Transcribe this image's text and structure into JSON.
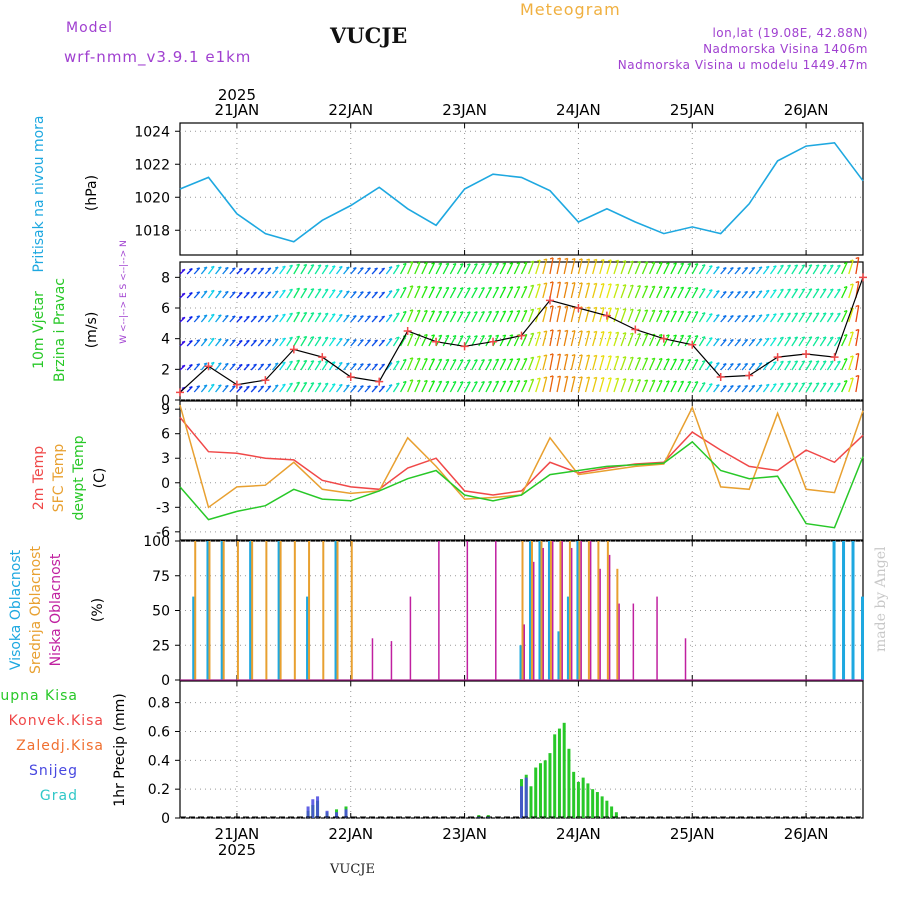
{
  "header": {
    "model_label": "Model",
    "model_name": "wrf-nmm_v3.9.1 e1km",
    "station": "VUCJE",
    "app_title": "Meteogram",
    "coords": "lon,lat (19.08E, 42.88N)",
    "altitude": "Nadmorska Visina 1406m",
    "model_altitude": "Nadmorska Visina u modelu 1449.47m",
    "footer_station": "VUCJE",
    "watermark": "made by Angel"
  },
  "colors": {
    "pressure": "#1ea8e0",
    "temp2m": "#f04848",
    "sfc": "#e8a030",
    "dewpt": "#28c828",
    "cloud_high": "#1ea8e0",
    "cloud_mid": "#e8a030",
    "cloud_low": "#c020a0",
    "rain_total": "#28c828",
    "rain_conv": "#f04848",
    "rain_froz": "#f07030",
    "snow": "#4848e0",
    "hail": "#30c8c8",
    "header_purple": "#a040d0",
    "title_orange": "#f0b040"
  },
  "chart_data": [
    {
      "type": "line",
      "id": "pressure",
      "ylabel": "Pritisak na nivou mora",
      "unit": "(hPa)",
      "ylim": [
        1016.5,
        1024.5
      ],
      "yticks": [
        1018,
        1020,
        1022,
        1024
      ],
      "top_labels": [
        "21JAN",
        "22JAN",
        "23JAN",
        "24JAN",
        "25JAN",
        "26JAN"
      ],
      "top_year": "2025",
      "x": [
        0,
        6,
        12,
        18,
        24,
        30,
        36,
        42,
        48,
        54,
        60,
        66,
        72,
        78,
        84,
        90,
        96,
        102,
        108,
        114,
        120,
        126,
        132,
        138,
        144
      ],
      "series": [
        {
          "name": "Pritisak",
          "values": [
            1020.5,
            1021.2,
            1019.0,
            1017.8,
            1017.3,
            1018.6,
            1019.5,
            1020.6,
            1019.3,
            1018.3,
            1020.5,
            1021.4,
            1021.2,
            1020.4,
            1018.5,
            1019.3,
            1018.5,
            1017.8,
            1018.2,
            1017.8,
            1019.6,
            1022.2,
            1023.1,
            1023.3,
            1021.0
          ]
        }
      ]
    },
    {
      "type": "line",
      "id": "wind",
      "ylabel": [
        "10m Vjetar",
        "Brzina i Pravac"
      ],
      "unit": "(m/s)",
      "legend_text": "W <--|--> E   S <--|--> N",
      "ylim": [
        0,
        9
      ],
      "yticks": [
        0,
        2,
        4,
        6,
        8
      ],
      "x": [
        0,
        6,
        12,
        18,
        24,
        30,
        36,
        42,
        48,
        54,
        60,
        66,
        72,
        78,
        84,
        90,
        96,
        102,
        108,
        114,
        120,
        126,
        132,
        138,
        144
      ],
      "series": [
        {
          "name": "Brzina",
          "values": [
            0.5,
            2.2,
            1.0,
            1.3,
            3.3,
            2.8,
            1.5,
            1.2,
            4.5,
            3.8,
            3.5,
            3.8,
            4.2,
            6.5,
            6.0,
            5.5,
            4.6,
            4.0,
            3.6,
            1.5,
            1.6,
            2.8,
            3.0,
            2.8,
            8.0
          ]
        }
      ]
    },
    {
      "type": "line",
      "id": "temperature",
      "ylabel": [
        "2m Temp",
        "SFC Temp",
        "dewpt Temp"
      ],
      "unit": "(C)",
      "ylim": [
        -7,
        10
      ],
      "yticks": [
        -6,
        -3,
        0,
        3,
        6,
        9
      ],
      "x": [
        0,
        6,
        12,
        18,
        24,
        30,
        36,
        42,
        48,
        54,
        60,
        66,
        72,
        78,
        84,
        90,
        96,
        102,
        108,
        114,
        120,
        126,
        132,
        138,
        144
      ],
      "series": [
        {
          "name": "2m Temp",
          "values": [
            8.0,
            3.8,
            3.6,
            3.0,
            2.8,
            0.3,
            -0.5,
            -0.8,
            1.8,
            3.0,
            -1.0,
            -1.5,
            -1.0,
            2.5,
            1.2,
            1.8,
            2.3,
            2.5,
            6.2,
            4.0,
            2.0,
            1.5,
            4.0,
            2.5,
            5.8
          ]
        },
        {
          "name": "SFC Temp",
          "values": [
            9.5,
            -3.0,
            -0.5,
            -0.3,
            2.5,
            -0.8,
            -1.3,
            -1.0,
            5.5,
            2.0,
            -2.0,
            -1.8,
            -1.5,
            5.5,
            1.0,
            1.5,
            2.0,
            2.3,
            9.2,
            -0.5,
            -0.8,
            8.5,
            -0.8,
            -1.2,
            8.8
          ]
        },
        {
          "name": "dewpt Temp",
          "values": [
            -0.5,
            -4.5,
            -3.5,
            -2.8,
            -0.8,
            -2.0,
            -2.2,
            -1.0,
            0.5,
            1.5,
            -1.5,
            -2.2,
            -1.5,
            1.0,
            1.5,
            2.0,
            2.2,
            2.4,
            5.0,
            1.5,
            0.5,
            0.8,
            -5.0,
            -5.5,
            3.2
          ]
        }
      ]
    },
    {
      "type": "bar",
      "id": "clouds",
      "ylabel": [
        "Visoka Oblacnost",
        "Srednja Oblacnost",
        "Niska Oblacnost"
      ],
      "unit": "(%)",
      "ylim": [
        0,
        100
      ],
      "yticks": [
        0,
        25,
        50,
        75,
        100
      ],
      "x": [
        3,
        6,
        9,
        12,
        15,
        18,
        21,
        24,
        27,
        30,
        33,
        36,
        40,
        44,
        48,
        54,
        60,
        66,
        72,
        74,
        76,
        78,
        80,
        82,
        84,
        86,
        88,
        90,
        92,
        95,
        100,
        106,
        138,
        140,
        142,
        144
      ],
      "series": [
        {
          "name": "Visoka Oblacnost",
          "values": [
            60,
            100,
            100,
            0,
            100,
            0,
            100,
            0,
            60,
            0,
            100,
            0,
            0,
            0,
            0,
            0,
            0,
            0,
            25,
            100,
            100,
            100,
            35,
            60,
            100,
            0,
            0,
            0,
            0,
            0,
            0,
            0,
            100,
            100,
            100,
            60
          ]
        },
        {
          "name": "Srednja Oblacnost",
          "values": [
            100,
            100,
            100,
            100,
            100,
            100,
            100,
            100,
            100,
            100,
            100,
            100,
            0,
            0,
            0,
            0,
            0,
            0,
            100,
            100,
            100,
            100,
            100,
            100,
            100,
            100,
            100,
            100,
            80,
            0,
            0,
            0,
            0,
            0,
            0,
            0
          ]
        },
        {
          "name": "Niska Oblacnost",
          "values": [
            0,
            0,
            0,
            0,
            0,
            0,
            0,
            0,
            0,
            0,
            0,
            0,
            30,
            28,
            60,
            100,
            100,
            100,
            40,
            85,
            95,
            100,
            100,
            95,
            100,
            100,
            80,
            90,
            55,
            55,
            60,
            30,
            0,
            0,
            0,
            0
          ]
        }
      ]
    },
    {
      "type": "bar",
      "id": "precip",
      "ylabel": [
        "Ukupna Kisa",
        "Konvek.Kisa",
        "Zaledj.Kisa",
        "Snijeg",
        "Grad"
      ],
      "unit": "1hr Precip (mm)",
      "ylim": [
        0,
        0.95
      ],
      "yticks": [
        0,
        0.2,
        0.4,
        0.6,
        0.8
      ],
      "bottom_labels": [
        "21JAN",
        "22JAN",
        "23JAN",
        "24JAN",
        "25JAN",
        "26JAN"
      ],
      "bottom_year": "2025",
      "x": [
        27,
        28,
        29,
        31,
        33,
        35,
        63,
        65,
        72,
        73,
        74,
        75,
        76,
        77,
        78,
        79,
        80,
        81,
        82,
        83,
        84,
        85,
        86,
        87,
        88,
        89,
        90,
        91,
        92
      ],
      "series": [
        {
          "name": "Ukupna Kisa",
          "values": [
            0.05,
            0.09,
            0.12,
            0.04,
            0.06,
            0.08,
            0.02,
            0.02,
            0.27,
            0.3,
            0.22,
            0.35,
            0.38,
            0.4,
            0.45,
            0.58,
            0.62,
            0.66,
            0.48,
            0.32,
            0.25,
            0.28,
            0.24,
            0.2,
            0.18,
            0.15,
            0.12,
            0.08,
            0.04
          ]
        },
        {
          "name": "Snijeg",
          "values": [
            0.08,
            0.13,
            0.15,
            0.05,
            0.04,
            0.06,
            0.01,
            0.01,
            0.22,
            0.28,
            0,
            0,
            0,
            0,
            0,
            0,
            0,
            0,
            0,
            0,
            0,
            0,
            0,
            0,
            0,
            0,
            0,
            0,
            0
          ]
        }
      ]
    }
  ]
}
